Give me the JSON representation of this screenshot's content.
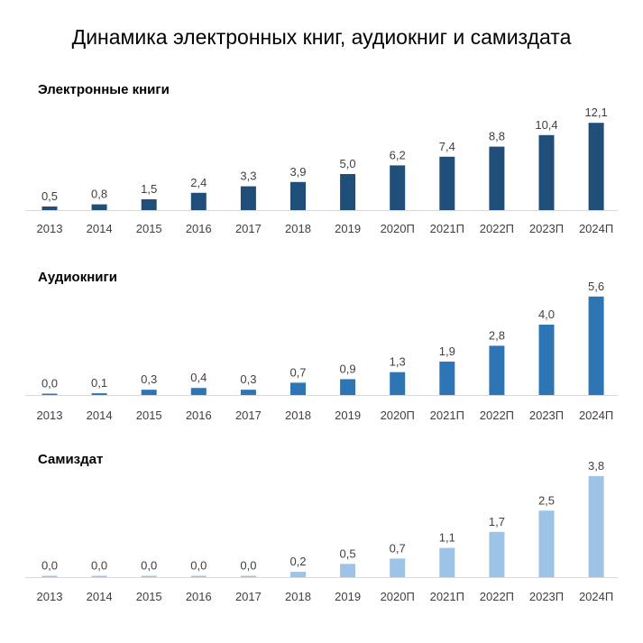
{
  "title": "Динамика электронных книг, аудиокниг и самиздата",
  "chart_data": [
    {
      "type": "bar",
      "title": "Электронные книги",
      "color": "#1f4e79",
      "categories": [
        "2013",
        "2014",
        "2015",
        "2016",
        "2017",
        "2018",
        "2019",
        "2020П",
        "2021П",
        "2022П",
        "2023П",
        "2024П"
      ],
      "values": [
        0.5,
        0.8,
        1.5,
        2.4,
        3.3,
        3.9,
        5.0,
        6.2,
        7.4,
        8.8,
        10.4,
        12.1
      ],
      "labels": [
        "0,5",
        "0,8",
        "1,5",
        "2,4",
        "3,3",
        "3,9",
        "5,0",
        "6,2",
        "7,4",
        "8,8",
        "10,4",
        "12,1"
      ],
      "grid": false
    },
    {
      "type": "bar",
      "title": "Аудиокниги",
      "color": "#2e75b6",
      "categories": [
        "2013",
        "2014",
        "2015",
        "2016",
        "2017",
        "2018",
        "2019",
        "2020П",
        "2021П",
        "2022П",
        "2023П",
        "2024П"
      ],
      "values": [
        0.0,
        0.1,
        0.3,
        0.4,
        0.3,
        0.7,
        0.9,
        1.3,
        1.9,
        2.8,
        4.0,
        5.6
      ],
      "labels": [
        "0,0",
        "0,1",
        "0,3",
        "0,4",
        "0,3",
        "0,7",
        "0,9",
        "1,3",
        "1,9",
        "2,8",
        "4,0",
        "5,6"
      ],
      "grid": false
    },
    {
      "type": "bar",
      "title": "Самиздат",
      "color": "#9dc3e6",
      "categories": [
        "2013",
        "2014",
        "2015",
        "2016",
        "2017",
        "2018",
        "2019",
        "2020П",
        "2021П",
        "2022П",
        "2023П",
        "2024П"
      ],
      "values": [
        0.0,
        0.0,
        0.0,
        0.0,
        0.0,
        0.2,
        0.5,
        0.7,
        1.1,
        1.7,
        2.5,
        3.8
      ],
      "labels": [
        "0,0",
        "0,0",
        "0,0",
        "0,0",
        "0,0",
        "0,2",
        "0,5",
        "0,7",
        "1,1",
        "1,7",
        "2,5",
        "3,8"
      ],
      "grid": false
    }
  ]
}
